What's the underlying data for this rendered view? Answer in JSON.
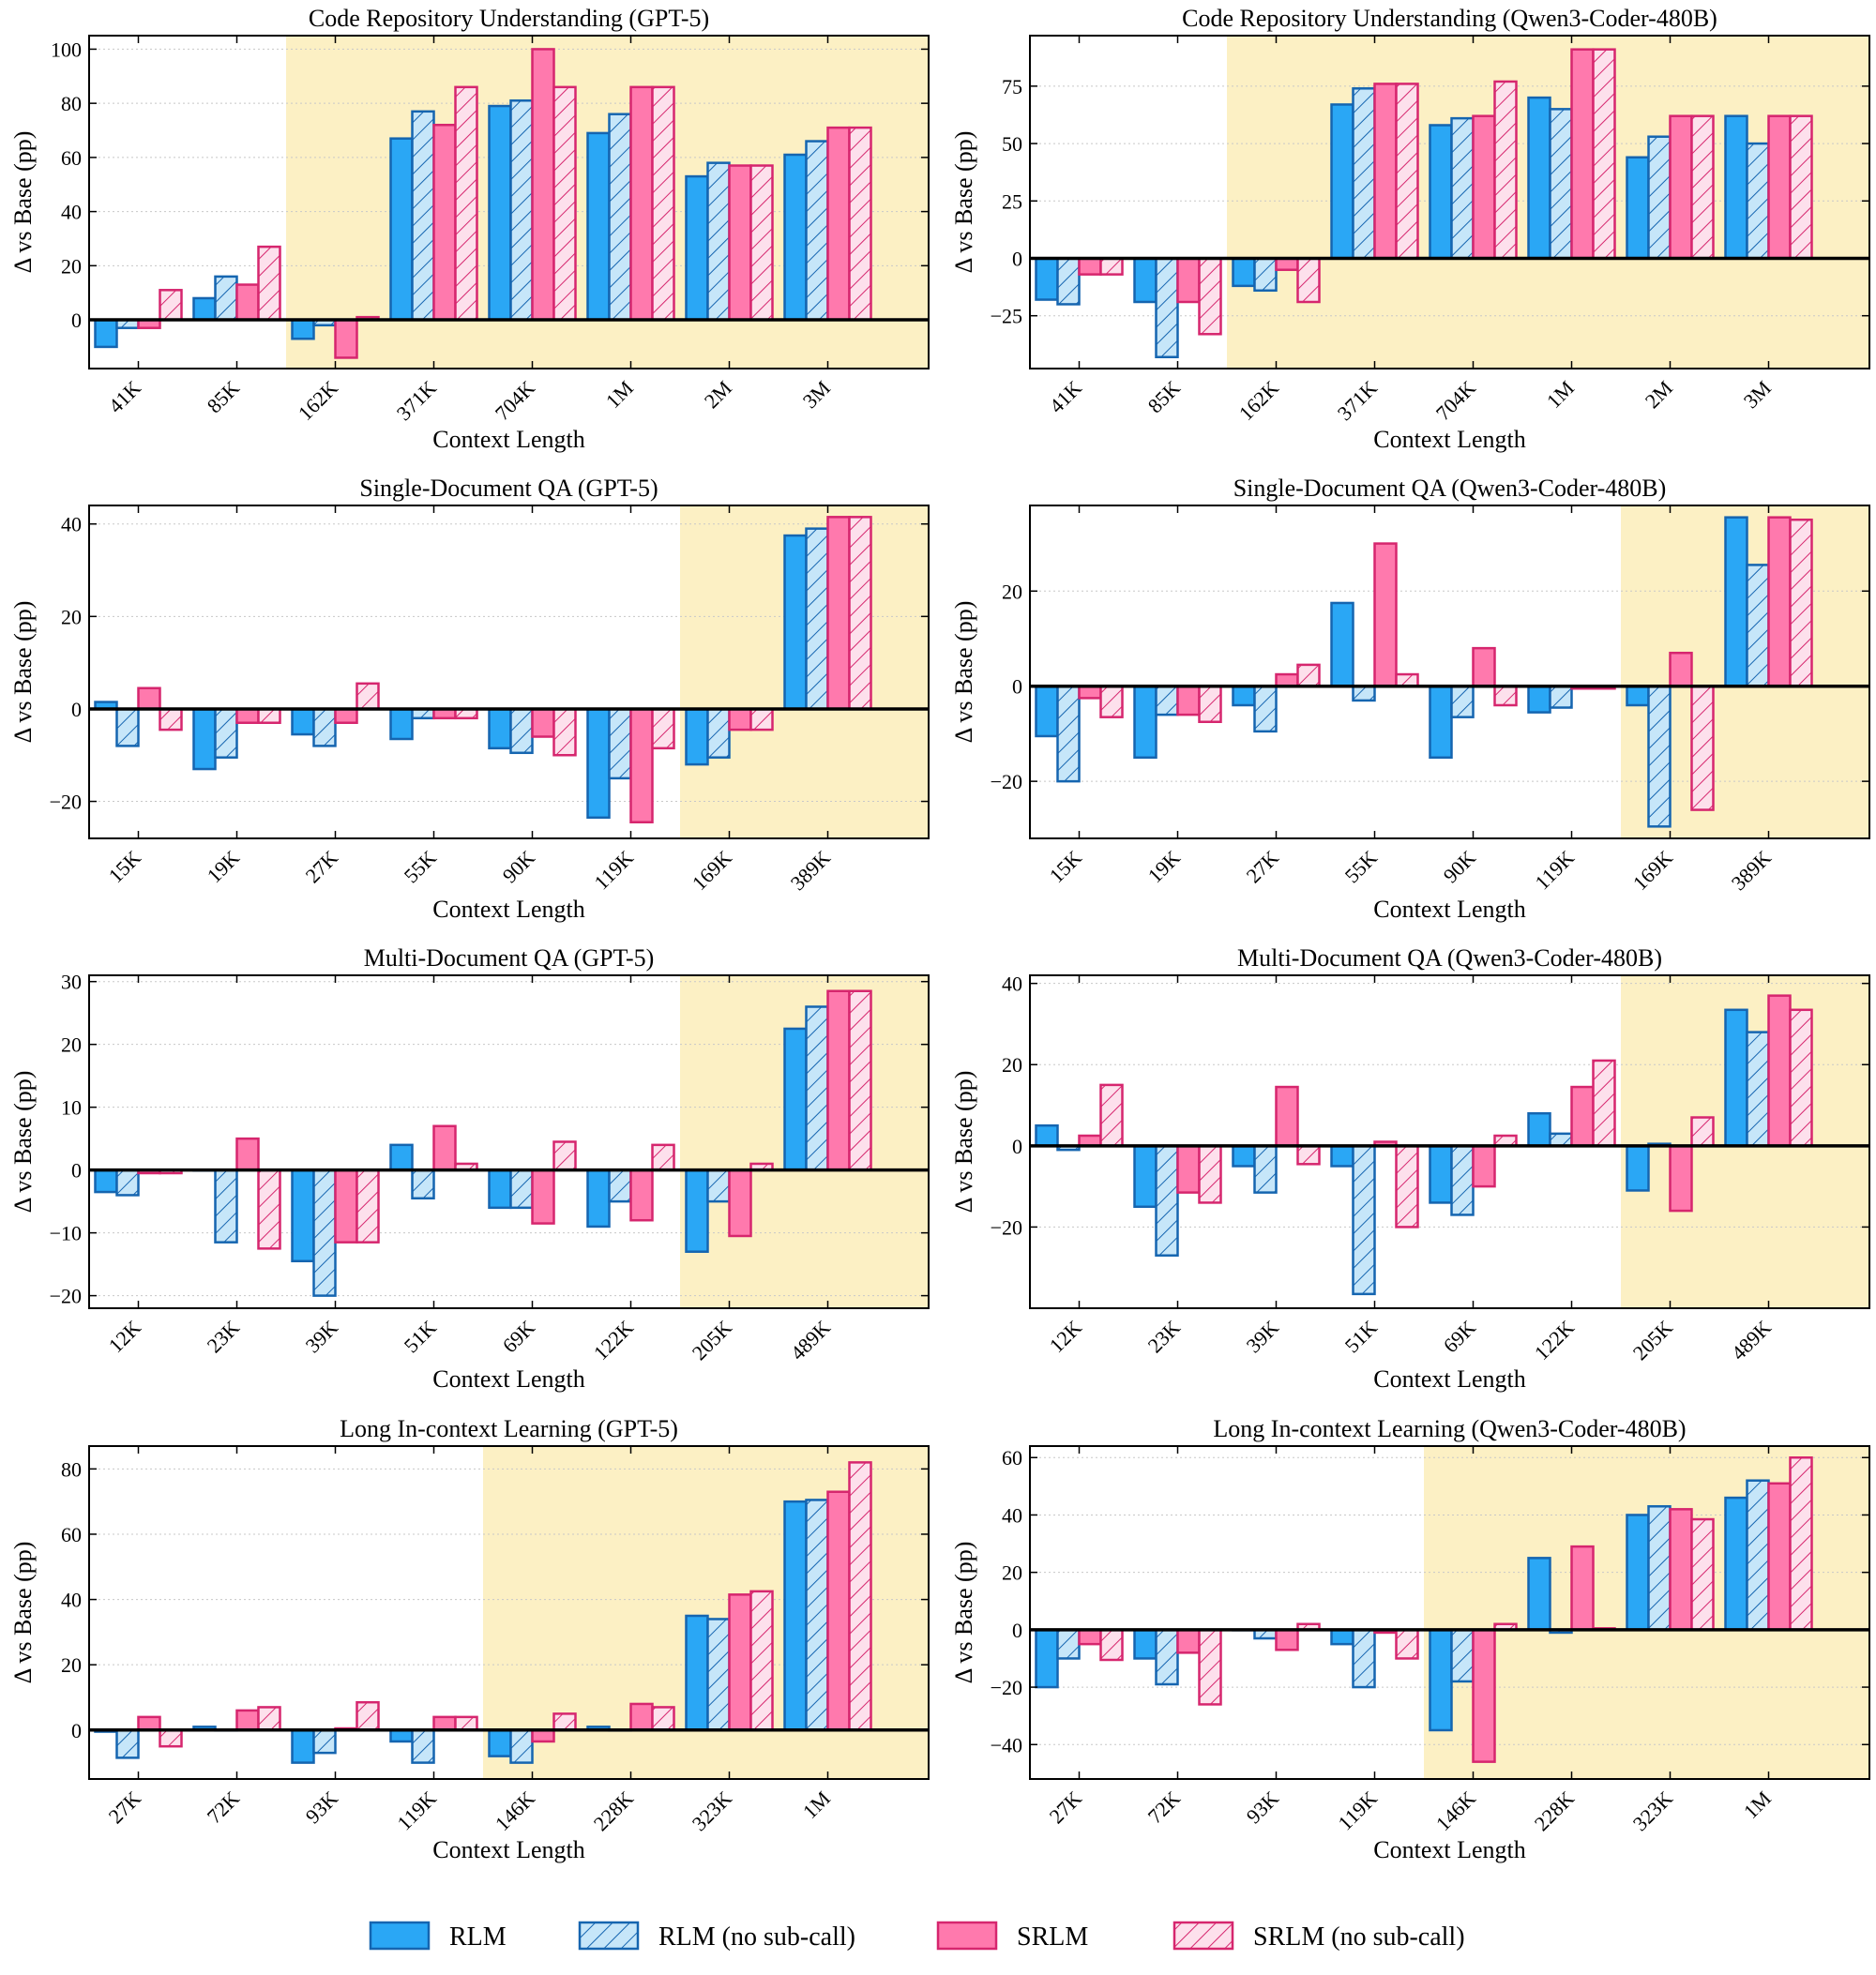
{
  "styles": {
    "rlm_fill": "#2aa7f5",
    "rlm_edge": "#1565b0",
    "rlm_ns_fill": "#c6e6f9",
    "rlm_ns_edge": "#1565b0",
    "srlm_fill": "#ff79ad",
    "srlm_edge": "#d6266e",
    "srlm_ns_fill": "#fde0ec",
    "srlm_ns_edge": "#d6266e",
    "shade": "#fcf0c4"
  },
  "legend": [
    "RLM",
    "RLM (no sub-call)",
    "SRLM",
    "SRLM (no sub-call)"
  ],
  "chart_data": [
    {
      "type": "bar",
      "title": "Code Repository Understanding (GPT-5)",
      "xlabel": "Context Length",
      "ylabel": "Δ vs Base (pp)",
      "ylim": [
        -18,
        105
      ],
      "yticks": [
        0,
        20,
        40,
        60,
        80,
        100
      ],
      "categories": [
        "41K",
        "85K",
        "162K",
        "371K",
        "704K",
        "1M",
        "2M",
        "3M"
      ],
      "shaded_from_category_index": 2,
      "grid": true,
      "series": [
        {
          "name": "RLM",
          "values": [
            -10,
            8,
            -7,
            67,
            79,
            69,
            53,
            61
          ]
        },
        {
          "name": "RLM (no sub-call)",
          "values": [
            -3,
            16,
            -2,
            77,
            81,
            76,
            58,
            66
          ]
        },
        {
          "name": "SRLM",
          "values": [
            -3,
            13,
            -14,
            72,
            100,
            86,
            57,
            71
          ]
        },
        {
          "name": "SRLM (no sub-call)",
          "values": [
            11,
            27,
            1,
            86,
            86,
            86,
            57,
            71
          ]
        }
      ]
    },
    {
      "type": "bar",
      "title": "Code Repository Understanding (Qwen3-Coder-480B)",
      "xlabel": "Context Length",
      "ylabel": "Δ vs Base (pp)",
      "ylim": [
        -48,
        97
      ],
      "yticks": [
        -25,
        0,
        25,
        50,
        75
      ],
      "categories": [
        "41K",
        "85K",
        "162K",
        "371K",
        "704K",
        "1M",
        "2M",
        "3M"
      ],
      "shaded_from_category_index": 2,
      "grid": true,
      "series": [
        {
          "name": "RLM",
          "values": [
            -18,
            -19,
            -12,
            67,
            58,
            70,
            44,
            62
          ]
        },
        {
          "name": "RLM (no sub-call)",
          "values": [
            -20,
            -43,
            -14,
            74,
            61,
            65,
            53,
            50
          ]
        },
        {
          "name": "SRLM",
          "values": [
            -7,
            -19,
            -5,
            76,
            62,
            91,
            62,
            62
          ]
        },
        {
          "name": "SRLM (no sub-call)",
          "values": [
            -7,
            -33,
            -19,
            76,
            77,
            91,
            62,
            62
          ]
        }
      ]
    },
    {
      "type": "bar",
      "title": "Single-Document QA (GPT-5)",
      "xlabel": "Context Length",
      "ylabel": "Δ vs Base (pp)",
      "ylim": [
        -28,
        44
      ],
      "yticks": [
        -20,
        0,
        20,
        40
      ],
      "categories": [
        "15K",
        "19K",
        "27K",
        "55K",
        "90K",
        "119K",
        "169K",
        "389K"
      ],
      "shaded_from_category_index": 6,
      "grid": true,
      "series": [
        {
          "name": "RLM",
          "values": [
            1.5,
            -13,
            -5.5,
            -6.5,
            -8.5,
            -23.5,
            -12,
            37.5
          ]
        },
        {
          "name": "RLM (no sub-call)",
          "values": [
            -8,
            -10.5,
            -8,
            -2,
            -9.5,
            -15,
            -10.5,
            39
          ]
        },
        {
          "name": "SRLM",
          "values": [
            4.5,
            -3,
            -3,
            -2,
            -6,
            -24.5,
            -4.5,
            41.5
          ]
        },
        {
          "name": "SRLM (no sub-call)",
          "values": [
            -4.5,
            -3,
            5.5,
            -2,
            -10,
            -8.5,
            -4.5,
            41.5
          ]
        }
      ]
    },
    {
      "type": "bar",
      "title": "Single-Document QA (Qwen3-Coder-480B)",
      "xlabel": "Context Length",
      "ylabel": "Δ vs Base (pp)",
      "ylim": [
        -32,
        38
      ],
      "yticks": [
        -20,
        0,
        20
      ],
      "categories": [
        "15K",
        "19K",
        "27K",
        "55K",
        "90K",
        "119K",
        "169K",
        "389K"
      ],
      "shaded_from_category_index": 6,
      "grid": true,
      "series": [
        {
          "name": "RLM",
          "values": [
            -10.5,
            -15,
            -4,
            17.5,
            -15,
            -5.5,
            -4,
            35.5
          ]
        },
        {
          "name": "RLM (no sub-call)",
          "values": [
            -20,
            -6,
            -9.5,
            -3,
            -6.5,
            -4.5,
            -29.5,
            25.5
          ]
        },
        {
          "name": "SRLM",
          "values": [
            -2.5,
            -6,
            2.5,
            30,
            8,
            -0.5,
            7,
            35.5
          ]
        },
        {
          "name": "SRLM (no sub-call)",
          "values": [
            -6.5,
            -7.5,
            4.5,
            2.5,
            -4,
            -0.5,
            -26,
            35
          ]
        }
      ]
    },
    {
      "type": "bar",
      "title": "Multi-Document QA (GPT-5)",
      "xlabel": "Context Length",
      "ylabel": "Δ vs Base (pp)",
      "ylim": [
        -22,
        31
      ],
      "yticks": [
        -20,
        -10,
        0,
        10,
        20,
        30
      ],
      "categories": [
        "12K",
        "23K",
        "39K",
        "51K",
        "69K",
        "122K",
        "205K",
        "489K"
      ],
      "shaded_from_category_index": 6,
      "grid": true,
      "series": [
        {
          "name": "RLM",
          "values": [
            -3.5,
            0,
            -14.5,
            4,
            -6,
            -9,
            -13,
            22.5
          ]
        },
        {
          "name": "RLM (no sub-call)",
          "values": [
            -4,
            -11.5,
            -20,
            -4.5,
            -6,
            -5,
            -5,
            26
          ]
        },
        {
          "name": "SRLM",
          "values": [
            -0.5,
            5,
            -11.5,
            7,
            -8.5,
            -8,
            -10.5,
            28.5
          ]
        },
        {
          "name": "SRLM (no sub-call)",
          "values": [
            -0.5,
            -12.5,
            -11.5,
            1,
            4.5,
            4,
            1,
            28.5
          ]
        }
      ]
    },
    {
      "type": "bar",
      "title": "Multi-Document QA (Qwen3-Coder-480B)",
      "xlabel": "Context Length",
      "ylabel": "Δ vs Base (pp)",
      "ylim": [
        -40,
        42
      ],
      "yticks": [
        -20,
        0,
        20,
        40
      ],
      "categories": [
        "12K",
        "23K",
        "39K",
        "51K",
        "69K",
        "122K",
        "205K",
        "489K"
      ],
      "shaded_from_category_index": 6,
      "grid": true,
      "series": [
        {
          "name": "RLM",
          "values": [
            5,
            -15,
            -5,
            -5,
            -14,
            8,
            -11,
            33.5
          ]
        },
        {
          "name": "RLM (no sub-call)",
          "values": [
            -1,
            -27,
            -11.5,
            -36.5,
            -17,
            3,
            0.5,
            28
          ]
        },
        {
          "name": "SRLM",
          "values": [
            2.5,
            -11.5,
            14.5,
            1,
            -10,
            14.5,
            -16,
            37
          ]
        },
        {
          "name": "SRLM (no sub-call)",
          "values": [
            15,
            -14,
            -4.5,
            -20,
            2.5,
            21,
            7,
            33.5
          ]
        }
      ]
    },
    {
      "type": "bar",
      "title": "Long In-context Learning (GPT-5)",
      "xlabel": "Context Length",
      "ylabel": "Δ vs Base (pp)",
      "ylim": [
        -15,
        87
      ],
      "yticks": [
        0,
        20,
        40,
        60,
        80
      ],
      "categories": [
        "27K",
        "72K",
        "93K",
        "119K",
        "146K",
        "228K",
        "323K",
        "1M"
      ],
      "shaded_from_category_index": 4,
      "grid": true,
      "series": [
        {
          "name": "RLM",
          "values": [
            -0.5,
            1,
            -10,
            -3.5,
            -8,
            1,
            35,
            70
          ]
        },
        {
          "name": "RLM (no sub-call)",
          "values": [
            -8.5,
            0,
            -7,
            -10,
            -10,
            0,
            34,
            70.5
          ]
        },
        {
          "name": "SRLM",
          "values": [
            4,
            6,
            0.5,
            4,
            -3.5,
            8,
            41.5,
            73
          ]
        },
        {
          "name": "SRLM (no sub-call)",
          "values": [
            -5,
            7,
            8.5,
            4,
            5,
            7,
            42.5,
            82
          ]
        }
      ]
    },
    {
      "type": "bar",
      "title": "Long In-context Learning (Qwen3-Coder-480B)",
      "xlabel": "Context Length",
      "ylabel": "Δ vs Base (pp)",
      "ylim": [
        -52,
        64
      ],
      "yticks": [
        -40,
        -20,
        0,
        20,
        40,
        60
      ],
      "categories": [
        "27K",
        "72K",
        "93K",
        "119K",
        "146K",
        "228K",
        "323K",
        "1M"
      ],
      "shaded_from_category_index": 4,
      "grid": true,
      "series": [
        {
          "name": "RLM",
          "values": [
            -20,
            -10,
            0,
            -5,
            -35,
            25,
            40,
            46
          ]
        },
        {
          "name": "RLM (no sub-call)",
          "values": [
            -10,
            -19,
            -3,
            -20,
            -18,
            -1,
            43,
            52
          ]
        },
        {
          "name": "SRLM",
          "values": [
            -5,
            -8,
            -7,
            -1,
            -46,
            29,
            42,
            51
          ]
        },
        {
          "name": "SRLM (no sub-call)",
          "values": [
            -10.5,
            -26,
            2,
            -10,
            2,
            0.5,
            38.5,
            60
          ]
        }
      ]
    }
  ]
}
